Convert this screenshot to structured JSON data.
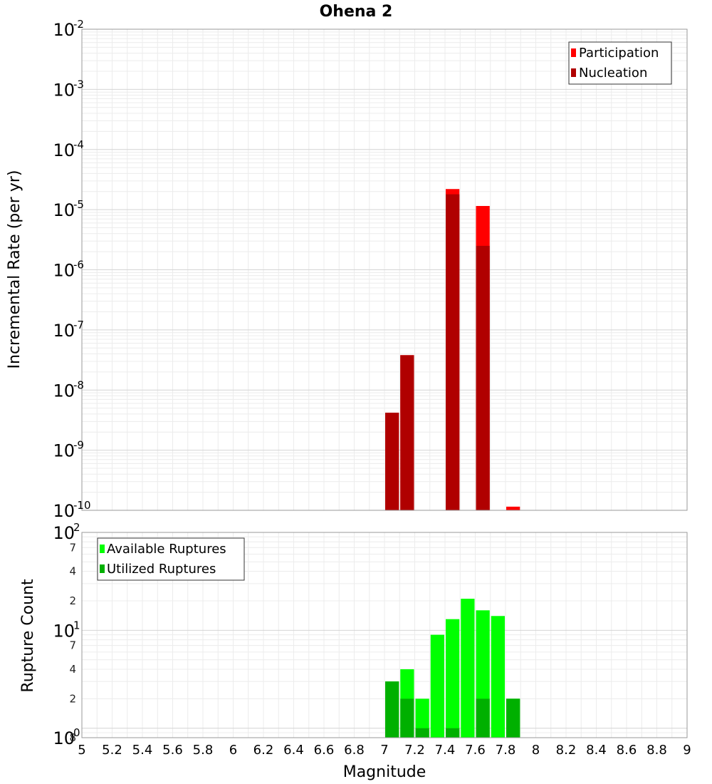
{
  "chart_data": [
    {
      "type": "bar",
      "title": "Ohena 2",
      "ylabel": "Incremental Rate (per yr)",
      "yscale": "log",
      "ylim": [
        1e-10,
        0.01
      ],
      "xlim": [
        5,
        9
      ],
      "grid": true,
      "legend_position": "top-right",
      "y_ticks": [
        {
          "base": "10",
          "exp": "-10",
          "value": 1e-10
        },
        {
          "base": "10",
          "exp": "-9",
          "value": 1e-09
        },
        {
          "base": "10",
          "exp": "-8",
          "value": 1e-08
        },
        {
          "base": "10",
          "exp": "-7",
          "value": 1e-07
        },
        {
          "base": "10",
          "exp": "-6",
          "value": 1e-06
        },
        {
          "base": "10",
          "exp": "-5",
          "value": 1e-05
        },
        {
          "base": "10",
          "exp": "-4",
          "value": 0.0001
        },
        {
          "base": "10",
          "exp": "-3",
          "value": 0.001
        },
        {
          "base": "10",
          "exp": "-2",
          "value": 0.01
        }
      ],
      "series": [
        {
          "name": "Participation",
          "color": "#ff0000",
          "points": [
            [
              7.05,
              4.2e-09
            ],
            [
              7.15,
              3.8e-08
            ],
            [
              7.45,
              2.2e-05
            ],
            [
              7.65,
              1.15e-05
            ],
            [
              7.85,
              1.15e-10
            ]
          ]
        },
        {
          "name": "Nucleation",
          "color": "#b00000",
          "points": [
            [
              7.05,
              4.2e-09
            ],
            [
              7.15,
              3.8e-08
            ],
            [
              7.45,
              1.8e-05
            ],
            [
              7.65,
              2.5e-06
            ]
          ]
        }
      ]
    },
    {
      "type": "bar",
      "ylabel": "Rupture Count",
      "yscale": "log",
      "xlabel": "Magnitude",
      "ylim": [
        0.8,
        100
      ],
      "xlim": [
        5,
        9
      ],
      "grid": true,
      "legend_position": "top-left",
      "y_ticks": [
        {
          "base": "10",
          "exp": "0",
          "value": 1,
          "label_value": 0.8
        },
        {
          "base": "10",
          "exp": "1",
          "value": 10
        },
        {
          "base": "10",
          "exp": "2",
          "value": 100
        }
      ],
      "y_minor_ticks": [
        {
          "label": "8",
          "value": 0.8
        },
        {
          "label": "2",
          "value": 2
        },
        {
          "label": "4",
          "value": 4
        },
        {
          "label": "7",
          "value": 7
        },
        {
          "label": "2",
          "value": 20
        },
        {
          "label": "4",
          "value": 40
        },
        {
          "label": "7",
          "value": 70
        }
      ],
      "series": [
        {
          "name": "Available Ruptures",
          "color": "#00ff00",
          "points": [
            [
              7.05,
              3
            ],
            [
              7.15,
              4
            ],
            [
              7.25,
              2
            ],
            [
              7.35,
              9
            ],
            [
              7.45,
              13
            ],
            [
              7.55,
              21
            ],
            [
              7.65,
              16
            ],
            [
              7.75,
              14
            ],
            [
              7.85,
              2
            ]
          ]
        },
        {
          "name": "Utilized Ruptures",
          "color": "#00b000",
          "points": [
            [
              7.05,
              3
            ],
            [
              7.15,
              2
            ],
            [
              7.25,
              1
            ],
            [
              7.45,
              1
            ],
            [
              7.65,
              2
            ],
            [
              7.85,
              2
            ]
          ]
        }
      ]
    }
  ],
  "x_ticks": [
    "5",
    "5.2",
    "5.4",
    "5.6",
    "5.8",
    "6",
    "6.2",
    "6.4",
    "6.6",
    "6.8",
    "7",
    "7.2",
    "7.4",
    "7.6",
    "7.8",
    "8",
    "8.2",
    "8.4",
    "8.6",
    "8.8",
    "9"
  ]
}
